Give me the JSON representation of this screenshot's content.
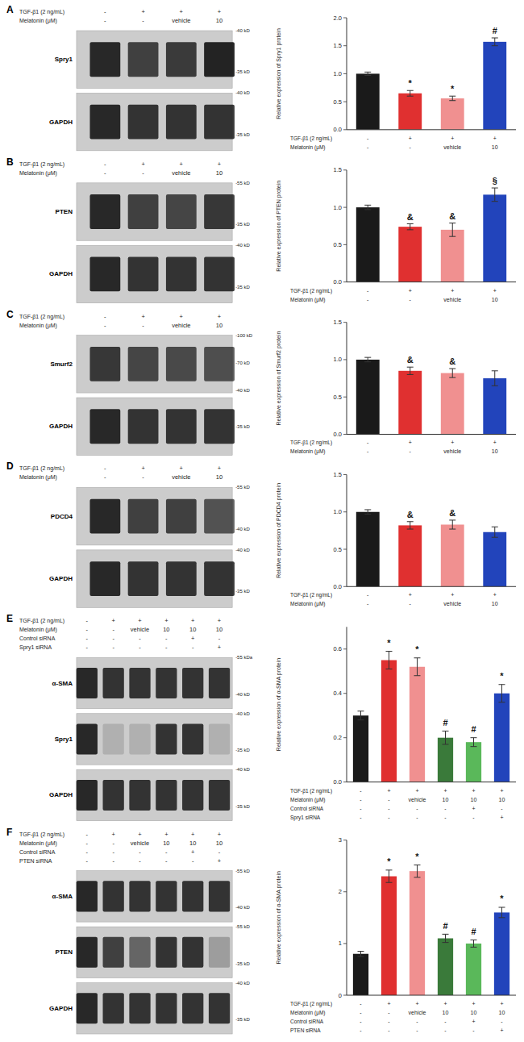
{
  "chart_data": [
    {
      "type": "bar",
      "title": "A",
      "y_label": "Relative expression of Spry1 protein",
      "values": [
        1.0,
        0.65,
        0.56,
        1.57
      ],
      "errors": [
        0.03,
        0.05,
        0.04,
        0.07
      ],
      "colors": [
        "#1a1a1a",
        "#e03030",
        "#f09090",
        "#2244bb"
      ],
      "ylim": [
        0,
        2.0
      ],
      "yticks": [
        {
          "value": 0,
          "label": "0.0"
        },
        0.5,
        {
          "value": 1,
          "label": "1.0"
        },
        1.5,
        {
          "value": 2,
          "label": "2.0"
        }
      ],
      "grid": false,
      "annotations": [
        null,
        "*",
        "*",
        "#"
      ],
      "condition_rows": [
        {
          "name": "TGF-β1 (2 ng/mL)",
          "labels": [
            "-",
            "+",
            "+",
            "+"
          ]
        },
        {
          "name": "Melatonin (μM)",
          "labels": [
            "-",
            "-",
            "vehicle",
            "10"
          ]
        }
      ],
      "blot": {
        "proteins": [
          "Spry1",
          "GAPDH"
        ],
        "mw_labels": [
          [
            "-40 kD",
            "-35 kD"
          ],
          [
            "-40 kD",
            "-35 kD"
          ]
        ],
        "band_intensity": [
          [
            0.88,
            0.75,
            0.78,
            0.9
          ],
          [
            0.88,
            0.82,
            0.82,
            0.82
          ]
        ],
        "color": "#111111"
      }
    },
    {
      "type": "bar",
      "title": "B",
      "y_label": "Relative expression of PTEN protein",
      "values": [
        1.0,
        0.74,
        0.7,
        1.17
      ],
      "errors": [
        0.03,
        0.04,
        0.09,
        0.09
      ],
      "colors": [
        "#1a1a1a",
        "#e03030",
        "#f09090",
        "#2244bb"
      ],
      "ylim": [
        0,
        1.5
      ],
      "yticks": [
        {
          "value": 0,
          "label": "0.0"
        },
        0.5,
        {
          "value": 1,
          "label": "1.0"
        },
        1.5
      ],
      "grid": false,
      "annotations": [
        null,
        "&",
        "&",
        "§"
      ],
      "condition_rows": [
        {
          "name": "TGF-β1 (2 ng/mL)",
          "labels": [
            "-",
            "+",
            "+",
            "+"
          ]
        },
        {
          "name": "Melatonin (μM)",
          "labels": [
            "-",
            "-",
            "vehicle",
            "10"
          ]
        }
      ],
      "blot": {
        "proteins": [
          "PTEN",
          "GAPDH"
        ],
        "mw_labels": [
          [
            "-55 kD",
            "-35 kD"
          ],
          [
            "-40 kD",
            "-35 kD"
          ]
        ],
        "band_intensity": [
          [
            0.88,
            0.75,
            0.72,
            0.8
          ],
          [
            0.88,
            0.82,
            0.82,
            0.82
          ]
        ],
        "color": "#111111"
      }
    },
    {
      "type": "bar",
      "title": "C",
      "y_label": "Relative expression of Smurf2 protein",
      "values": [
        1.0,
        0.85,
        0.82,
        0.75
      ],
      "errors": [
        0.03,
        0.05,
        0.06,
        0.1
      ],
      "colors": [
        "#1a1a1a",
        "#e03030",
        "#f09090",
        "#2244bb"
      ],
      "ylim": [
        0,
        1.5
      ],
      "yticks": [
        {
          "value": 0,
          "label": "0.0"
        },
        0.5,
        {
          "value": 1,
          "label": "1.0"
        },
        1.5
      ],
      "grid": false,
      "annotations": [
        null,
        "&",
        "&",
        null
      ],
      "condition_rows": [
        {
          "name": "TGF-β1 (2 ng/mL)",
          "labels": [
            "-",
            "+",
            "+",
            "+"
          ]
        },
        {
          "name": "Melatonin (μM)",
          "labels": [
            "-",
            "-",
            "vehicle",
            "10"
          ]
        }
      ],
      "blot": {
        "proteins": [
          "Smurf2",
          "GAPDH"
        ],
        "mw_labels": [
          [
            "-100 kD",
            "-70 kD",
            "-40 kD"
          ],
          [
            "-35 kD"
          ]
        ],
        "band_intensity": [
          [
            0.8,
            0.72,
            0.7,
            0.68
          ],
          [
            0.88,
            0.82,
            0.82,
            0.82
          ]
        ],
        "color": "#111111"
      }
    },
    {
      "type": "bar",
      "title": "D",
      "y_label": "Relative expression of PDCD4 protein",
      "values": [
        1.0,
        0.82,
        0.83,
        0.73
      ],
      "errors": [
        0.03,
        0.05,
        0.06,
        0.07
      ],
      "colors": [
        "#1a1a1a",
        "#e03030",
        "#f09090",
        "#2244bb"
      ],
      "ylim": [
        0,
        1.5
      ],
      "yticks": [
        {
          "value": 0,
          "label": "0.0"
        },
        0.5,
        {
          "value": 1,
          "label": "1.0"
        },
        1.5
      ],
      "grid": false,
      "annotations": [
        null,
        "&",
        "&",
        null
      ],
      "condition_rows": [
        {
          "name": "TGF-β1 (2 ng/mL)",
          "labels": [
            "-",
            "+",
            "+",
            "+"
          ]
        },
        {
          "name": "Melatonin (μM)",
          "labels": [
            "-",
            "-",
            "vehicle",
            "10"
          ]
        }
      ],
      "blot": {
        "proteins": [
          "PDCD4",
          "GAPDH"
        ],
        "mw_labels": [
          [
            "-55 kD",
            "-40 kD"
          ],
          [
            "-40 kD",
            "-35 kD"
          ]
        ],
        "band_intensity": [
          [
            0.88,
            0.75,
            0.75,
            0.65
          ],
          [
            0.88,
            0.82,
            0.82,
            0.82
          ]
        ],
        "color": "#111111"
      }
    },
    {
      "type": "bar",
      "title": "E",
      "y_label": "Relative expression of α-SMA protein",
      "values": [
        0.3,
        0.55,
        0.52,
        0.2,
        0.18,
        0.4
      ],
      "errors": [
        0.02,
        0.04,
        0.04,
        0.03,
        0.02,
        0.04
      ],
      "colors": [
        "#1a1a1a",
        "#e03030",
        "#f09090",
        "#3a7a3a",
        "#5ab85a",
        "#2244bb"
      ],
      "ylim": [
        0,
        0.7
      ],
      "yticks": [
        {
          "value": 0,
          "label": "0.0"
        },
        0.2,
        0.4,
        0.6
      ],
      "grid": false,
      "annotations": [
        null,
        "*",
        "*",
        "#",
        "#",
        "*"
      ],
      "condition_rows": [
        {
          "name": "TGF-β1 (2 ng/mL)",
          "labels": [
            "-",
            "+",
            "+",
            "+",
            "+",
            "+"
          ]
        },
        {
          "name": "Melatonin (μM)",
          "labels": [
            "-",
            "-",
            "vehicle",
            "10",
            "10",
            "10"
          ]
        },
        {
          "name": "Control siRNA",
          "labels": [
            "-",
            "-",
            "-",
            "-",
            "+",
            "-"
          ]
        },
        {
          "name": "Spry1 siRNA",
          "labels": [
            "-",
            "-",
            "-",
            "-",
            "-",
            "+"
          ]
        }
      ],
      "blot": {
        "proteins": [
          "α-SMA",
          "Spry1",
          "GAPDH"
        ],
        "mw_labels": [
          [
            "-55 kDa",
            "-40 kD"
          ],
          [
            "-40 kD",
            "-35 kD"
          ],
          [
            "-40 kD",
            "-35 kD"
          ]
        ],
        "band_intensity": [
          [
            0.88,
            0.82,
            0.82,
            0.82,
            0.82,
            0.82
          ],
          [
            0.88,
            0.15,
            0.15,
            0.82,
            0.82,
            0.15
          ],
          [
            0.88,
            0.82,
            0.82,
            0.82,
            0.82,
            0.82
          ]
        ],
        "color": "#111111"
      }
    },
    {
      "type": "bar",
      "title": "F",
      "y_label": "Relative expression of α-SMA protein",
      "values": [
        0.8,
        2.3,
        2.4,
        1.1,
        1.0,
        1.6
      ],
      "errors": [
        0.05,
        0.12,
        0.12,
        0.08,
        0.07,
        0.1
      ],
      "colors": [
        "#1a1a1a",
        "#e03030",
        "#f09090",
        "#3a7a3a",
        "#5ab85a",
        "#2244bb"
      ],
      "ylim": [
        0,
        3.0
      ],
      "yticks": [
        0,
        1,
        2,
        3
      ],
      "grid": false,
      "annotations": [
        null,
        "*",
        "*",
        "#",
        "#",
        "*"
      ],
      "condition_rows": [
        {
          "name": "TGF-β1 (2 ng/mL)",
          "labels": [
            "-",
            "+",
            "+",
            "+",
            "+",
            "+"
          ]
        },
        {
          "name": "Melatonin (μM)",
          "labels": [
            "-",
            "-",
            "vehicle",
            "10",
            "10",
            "10"
          ]
        },
        {
          "name": "Control siRNA",
          "labels": [
            "-",
            "-",
            "-",
            "-",
            "+",
            "-"
          ]
        },
        {
          "name": "PTEN siRNA",
          "labels": [
            "-",
            "-",
            "-",
            "-",
            "-",
            "+"
          ]
        }
      ],
      "blot": {
        "proteins": [
          "α-SMA",
          "PTEN",
          "GAPDH"
        ],
        "mw_labels": [
          [
            "-55 kD",
            "-40 kD"
          ],
          [
            "-55 kD",
            "-35 kD"
          ],
          [
            "-40 kD",
            "-35 kD"
          ]
        ],
        "band_intensity": [
          [
            0.88,
            0.82,
            0.82,
            0.82,
            0.82,
            0.82
          ],
          [
            0.88,
            0.75,
            0.55,
            0.82,
            0.82,
            0.25
          ],
          [
            0.88,
            0.82,
            0.82,
            0.82,
            0.82,
            0.82
          ]
        ],
        "color": "#111111"
      }
    }
  ]
}
